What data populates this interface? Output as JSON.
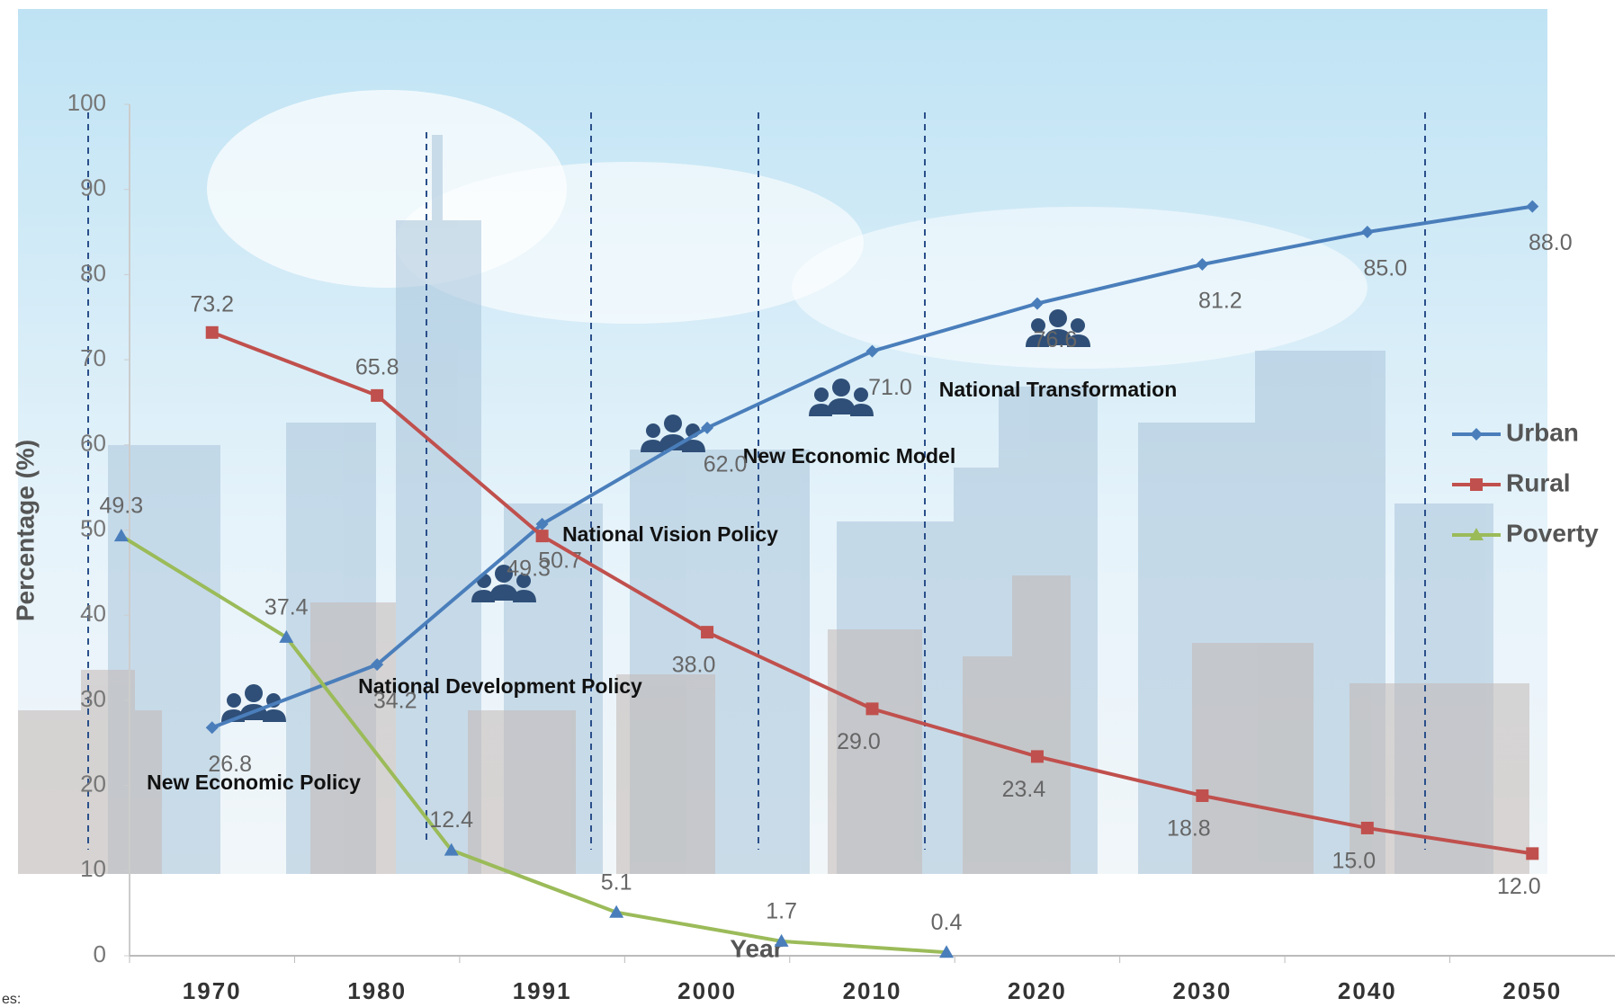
{
  "chart_data": {
    "type": "line",
    "y_label": "Percentage (%)",
    "x_label": "Year",
    "categories": [
      "1970",
      "1980",
      "1991",
      "2000",
      "2010",
      "2020",
      "2030",
      "2040",
      "2050"
    ],
    "series": [
      {
        "name": "Urban",
        "color": "#4a7ebb",
        "marker": "diamond",
        "values": [
          26.8,
          34.2,
          50.7,
          62.0,
          71.0,
          76.6,
          81.2,
          85.0,
          88.0
        ],
        "value_labels": [
          "26.8",
          "34.2",
          "50.7",
          "62.0",
          "71.0",
          "76.6",
          "81.2",
          "85.0",
          "88.0"
        ]
      },
      {
        "name": "Rural",
        "color": "#c0504d",
        "marker": "square",
        "values": [
          73.2,
          65.8,
          49.3,
          38.0,
          29.0,
          23.4,
          18.8,
          15.0,
          12.0
        ],
        "value_labels": [
          "73.2",
          "65.8",
          "49.3",
          "38.0",
          "29.0",
          "23.4",
          "18.8",
          "15.0",
          "12.0"
        ]
      },
      {
        "name": "Poverty",
        "color": "#9bbb59",
        "marker": "triangle",
        "values": [
          49.3,
          37.4,
          12.4,
          5.1,
          1.7,
          0.4,
          null,
          null,
          null
        ],
        "value_labels": [
          "49.3",
          "37.4",
          "12.4",
          "5.1",
          "1.7",
          "0.4",
          null,
          null,
          null
        ]
      }
    ],
    "ylim": [
      0,
      100
    ],
    "yticks": [
      0,
      10,
      20,
      30,
      40,
      50,
      60,
      70,
      80,
      90,
      100
    ],
    "legend": "right",
    "annotations": [
      "New Economic Policy",
      "National Development Policy",
      "National Vision Policy",
      "New Economic Model",
      "National Transformation"
    ],
    "footnote": "es:"
  }
}
